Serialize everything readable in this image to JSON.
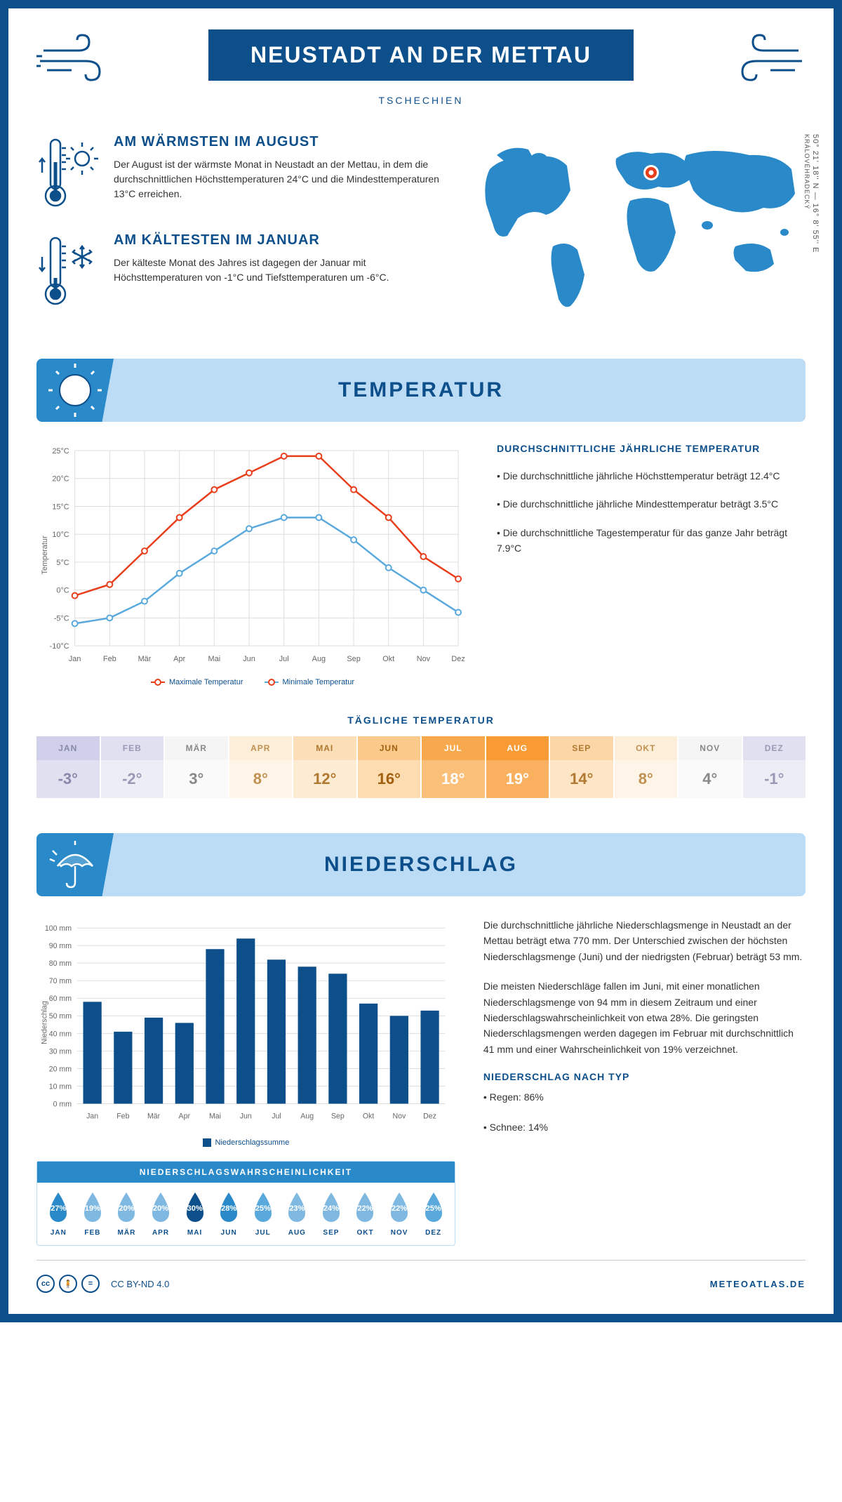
{
  "header": {
    "title": "NEUSTADT AN DER METTAU",
    "subtitle": "TSCHECHIEN"
  },
  "coords": {
    "text": "50° 21' 18'' N — 16° 8' 55'' E",
    "region": "KRÁLOVÉHRADECKÝ"
  },
  "facts": {
    "warm": {
      "title": "AM WÄRMSTEN IM AUGUST",
      "text": "Der August ist der wärmste Monat in Neustadt an der Mettau, in dem die durchschnittlichen Höchsttemperaturen 24°C und die Mindesttemperaturen 13°C erreichen."
    },
    "cold": {
      "title": "AM KÄLTESTEN IM JANUAR",
      "text": "Der kälteste Monat des Jahres ist dagegen der Januar mit Höchsttemperaturen von -1°C und Tiefsttemperaturen um -6°C."
    }
  },
  "map": {
    "marker_color": "#e83e1b",
    "land_color": "#2a8ac9"
  },
  "sections": {
    "temperature": "TEMPERATUR",
    "precipitation": "NIEDERSCHLAG"
  },
  "months": [
    "Jan",
    "Feb",
    "Mär",
    "Apr",
    "Mai",
    "Jun",
    "Jul",
    "Aug",
    "Sep",
    "Okt",
    "Nov",
    "Dez"
  ],
  "months_upper": [
    "JAN",
    "FEB",
    "MÄR",
    "APR",
    "MAI",
    "JUN",
    "JUL",
    "AUG",
    "SEP",
    "OKT",
    "NOV",
    "DEZ"
  ],
  "temp_chart": {
    "type": "line",
    "ylabel": "Temperatur",
    "ylim": [
      -10,
      25
    ],
    "ytick_step": 5,
    "max_series": {
      "values": [
        -1,
        1,
        7,
        13,
        18,
        21,
        24,
        24,
        18,
        13,
        6,
        2
      ],
      "color": "#e83e1b",
      "label": "Maximale Temperatur"
    },
    "min_series": {
      "values": [
        -6,
        -5,
        -2,
        3,
        7,
        11,
        13,
        13,
        9,
        4,
        0,
        -4
      ],
      "color": "#5aa9dd",
      "label": "Minimale Temperatur"
    },
    "grid_color": "#dddddd",
    "background_color": "#ffffff"
  },
  "temp_facts": {
    "title": "DURCHSCHNITTLICHE JÄHRLICHE TEMPERATUR",
    "line1": "• Die durchschnittliche jährliche Höchsttemperatur beträgt 12.4°C",
    "line2": "• Die durchschnittliche jährliche Mindesttemperatur beträgt 3.5°C",
    "line3": "• Die durchschnittliche Tagestemperatur für das ganze Jahr beträgt 7.9°C"
  },
  "daily": {
    "title": "TÄGLICHE TEMPERATUR",
    "values": [
      "-3°",
      "-2°",
      "3°",
      "8°",
      "12°",
      "16°",
      "18°",
      "19°",
      "14°",
      "8°",
      "4°",
      "-1°"
    ],
    "head_colors": [
      "#d0d0ea",
      "#e0e0f0",
      "#f5f5f5",
      "#fdeeda",
      "#fcdfb8",
      "#fbc98a",
      "#f9a94d",
      "#f89b35",
      "#fcd6a6",
      "#fdeeda",
      "#f5f5f5",
      "#e0e0f0"
    ],
    "val_colors": [
      "#e0e0f0",
      "#ededf5",
      "#fafafa",
      "#fef5e8",
      "#fdecd4",
      "#fcdcb0",
      "#fabf78",
      "#f9b160",
      "#fde5c5",
      "#fef5e8",
      "#fafafa",
      "#ededf5"
    ],
    "text_colors": [
      "#8888aa",
      "#9999b5",
      "#888888",
      "#c09050",
      "#b07830",
      "#a06010",
      "#ffffff",
      "#ffffff",
      "#b07830",
      "#c09050",
      "#888888",
      "#9999b5"
    ]
  },
  "precip_chart": {
    "type": "bar",
    "ylabel": "Niederschlag",
    "ylim": [
      0,
      100
    ],
    "ytick_step": 10,
    "values": [
      58,
      41,
      49,
      46,
      88,
      94,
      82,
      78,
      74,
      57,
      50,
      53
    ],
    "bar_color": "#0d4f8b",
    "legend": "Niederschlagssumme",
    "y_suffix": " mm"
  },
  "precip_text": {
    "p1": "Die durchschnittliche jährliche Niederschlagsmenge in Neustadt an der Mettau beträgt etwa 770 mm. Der Unterschied zwischen der höchsten Niederschlagsmenge (Juni) und der niedrigsten (Februar) beträgt 53 mm.",
    "p2": "Die meisten Niederschläge fallen im Juni, mit einer monatlichen Niederschlagsmenge von 94 mm in diesem Zeitraum und einer Niederschlagswahrscheinlichkeit von etwa 28%. Die geringsten Niederschlagsmengen werden dagegen im Februar mit durchschnittlich 41 mm und einer Wahrscheinlichkeit von 19% verzeichnet.",
    "type_title": "NIEDERSCHLAG NACH TYP",
    "rain": "• Regen: 86%",
    "snow": "• Schnee: 14%"
  },
  "prob": {
    "title": "NIEDERSCHLAGSWAHRSCHEINLICHKEIT",
    "values": [
      "27%",
      "19%",
      "20%",
      "20%",
      "30%",
      "28%",
      "25%",
      "23%",
      "24%",
      "22%",
      "22%",
      "25%"
    ],
    "colors": [
      "#2a8ac9",
      "#7fb8e0",
      "#7fb8e0",
      "#7fb8e0",
      "#0d4f8b",
      "#2a8ac9",
      "#5aa9dd",
      "#7fb8e0",
      "#7fb8e0",
      "#7fb8e0",
      "#7fb8e0",
      "#5aa9dd"
    ]
  },
  "footer": {
    "license": "CC BY-ND 4.0",
    "brand": "METEOATLAS.DE"
  },
  "colors": {
    "primary": "#0d4f8b",
    "light_blue": "#bcdcf5",
    "mid_blue": "#2a8ac9"
  }
}
